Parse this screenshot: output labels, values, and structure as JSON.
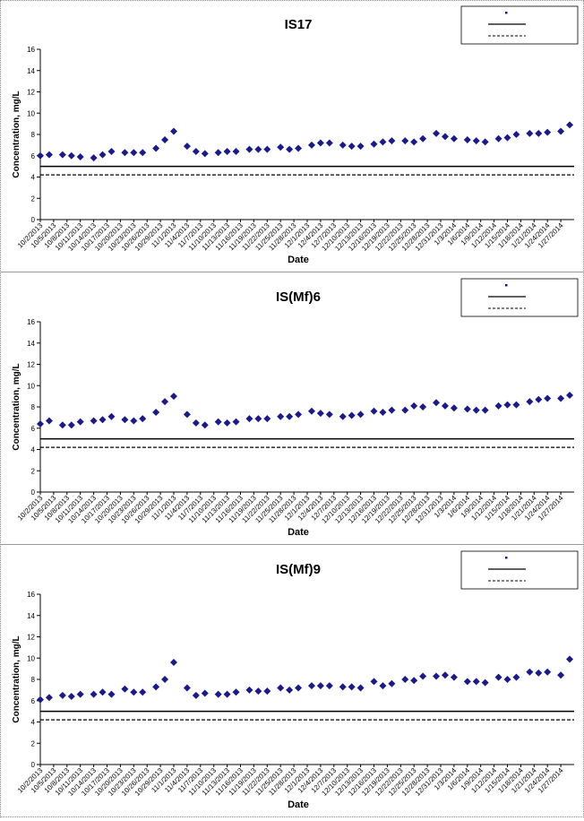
{
  "chart_data": [
    {
      "type": "scatter",
      "title": "IS17",
      "xlabel": "Date",
      "ylabel": "Concentration, mg/L",
      "ylim": [
        0,
        16
      ],
      "yticks": [
        "0",
        "2",
        "4",
        "6",
        "8",
        "10",
        "12",
        "14",
        "16"
      ],
      "date_ticks": [
        "10/2/2013",
        "10/5/2013",
        "10/8/2013",
        "10/11/2013",
        "10/14/2013",
        "10/17/2013",
        "10/20/2013",
        "10/23/2013",
        "10/26/2013",
        "10/29/2013",
        "11/1/2013",
        "11/4/2013",
        "11/7/2013",
        "11/10/2013",
        "11/13/2013",
        "11/16/2013",
        "11/19/2013",
        "11/22/2013",
        "11/25/2013",
        "11/28/2013",
        "12/1/2013",
        "12/4/2013",
        "12/7/2013",
        "12/10/2013",
        "12/13/2013",
        "12/16/2013",
        "12/19/2013",
        "12/22/2013",
        "12/25/2013",
        "12/28/2013",
        "12/31/2013",
        "1/3/2014",
        "1/6/2014",
        "1/9/2014",
        "1/12/2014",
        "1/15/2014",
        "1/18/2014",
        "1/21/2014",
        "1/24/2014",
        "1/27/2014"
      ],
      "date_range": [
        "10/2/2013",
        "1/30/2014"
      ],
      "grid": false,
      "legend": "top-right",
      "legend_entries": [
        "",
        "",
        ""
      ],
      "hlines": [
        5.0,
        4.2
      ],
      "series": [
        {
          "x": [
            "10/2/2013",
            "10/4/2013",
            "10/7/2013",
            "10/9/2013",
            "10/11/2013",
            "10/14/2013",
            "10/16/2013",
            "10/18/2013",
            "10/21/2013",
            "10/23/2013",
            "10/25/2013",
            "10/28/2013",
            "10/30/2013",
            "11/1/2013",
            "11/4/2013",
            "11/6/2013",
            "11/8/2013",
            "11/11/2013",
            "11/13/2013",
            "11/15/2013",
            "11/18/2013",
            "11/20/2013",
            "11/22/2013",
            "11/25/2013",
            "11/27/2013",
            "11/29/2013",
            "12/2/2013",
            "12/4/2013",
            "12/6/2013",
            "12/9/2013",
            "12/11/2013",
            "12/13/2013",
            "12/16/2013",
            "12/18/2013",
            "12/20/2013",
            "12/23/2013",
            "12/25/2013",
            "12/27/2013",
            "12/30/2013",
            "1/1/2014",
            "1/3/2014",
            "1/6/2014",
            "1/8/2014",
            "1/10/2014",
            "1/13/2014",
            "1/15/2014",
            "1/17/2014",
            "1/20/2014",
            "1/22/2014",
            "1/24/2014",
            "1/27/2014",
            "1/29/2014"
          ],
          "y": [
            6.0,
            6.1,
            6.1,
            6.0,
            5.9,
            5.8,
            6.1,
            6.4,
            6.3,
            6.3,
            6.3,
            6.7,
            7.5,
            8.3,
            6.9,
            6.4,
            6.2,
            6.3,
            6.4,
            6.4,
            6.6,
            6.6,
            6.6,
            6.8,
            6.6,
            6.7,
            7.0,
            7.2,
            7.2,
            7.0,
            6.9,
            6.9,
            7.1,
            7.3,
            7.4,
            7.4,
            7.3,
            7.6,
            8.1,
            7.8,
            7.6,
            7.5,
            7.4,
            7.3,
            7.6,
            7.7,
            8.0,
            8.1,
            8.1,
            8.2,
            8.3,
            8.9
          ],
          "color": "#1a1a8c"
        }
      ]
    },
    {
      "type": "scatter",
      "title": "IS(Mf)6",
      "xlabel": "Date",
      "ylabel": "Concentration, mg/L",
      "ylim": [
        0,
        16
      ],
      "yticks": [
        "0",
        "2",
        "4",
        "6",
        "8",
        "10",
        "12",
        "14",
        "16"
      ],
      "date_ticks": [
        "10/2/2013",
        "10/5/2013",
        "10/8/2013",
        "10/11/2013",
        "10/14/2013",
        "10/17/2013",
        "10/20/2013",
        "10/23/2013",
        "10/26/2013",
        "10/29/2013",
        "11/1/2013",
        "11/4/2013",
        "11/7/2013",
        "11/10/2013",
        "11/13/2013",
        "11/16/2013",
        "11/19/2013",
        "11/22/2013",
        "11/25/2013",
        "11/28/2013",
        "12/1/2013",
        "12/4/2013",
        "12/7/2013",
        "12/10/2013",
        "12/13/2013",
        "12/16/2013",
        "12/19/2013",
        "12/22/2013",
        "12/25/2013",
        "12/28/2013",
        "12/31/2013",
        "1/3/2014",
        "1/6/2014",
        "1/9/2014",
        "1/12/2014",
        "1/15/2014",
        "1/18/2014",
        "1/21/2014",
        "1/24/2014",
        "1/27/2014"
      ],
      "date_range": [
        "10/2/2013",
        "1/30/2014"
      ],
      "grid": false,
      "legend": "top-right",
      "legend_entries": [
        "",
        "",
        ""
      ],
      "hlines": [
        5.0,
        4.2
      ],
      "series": [
        {
          "x": [
            "10/2/2013",
            "10/4/2013",
            "10/7/2013",
            "10/9/2013",
            "10/11/2013",
            "10/14/2013",
            "10/16/2013",
            "10/18/2013",
            "10/21/2013",
            "10/23/2013",
            "10/25/2013",
            "10/28/2013",
            "10/30/2013",
            "11/1/2013",
            "11/4/2013",
            "11/6/2013",
            "11/8/2013",
            "11/11/2013",
            "11/13/2013",
            "11/15/2013",
            "11/18/2013",
            "11/20/2013",
            "11/22/2013",
            "11/25/2013",
            "11/27/2013",
            "11/29/2013",
            "12/2/2013",
            "12/4/2013",
            "12/6/2013",
            "12/9/2013",
            "12/11/2013",
            "12/13/2013",
            "12/16/2013",
            "12/18/2013",
            "12/20/2013",
            "12/23/2013",
            "12/25/2013",
            "12/27/2013",
            "12/30/2013",
            "1/1/2014",
            "1/3/2014",
            "1/6/2014",
            "1/8/2014",
            "1/10/2014",
            "1/13/2014",
            "1/15/2014",
            "1/17/2014",
            "1/20/2014",
            "1/22/2014",
            "1/24/2014",
            "1/27/2014",
            "1/29/2014"
          ],
          "y": [
            6.4,
            6.7,
            6.3,
            6.3,
            6.6,
            6.7,
            6.8,
            7.1,
            6.8,
            6.7,
            6.9,
            7.5,
            8.5,
            9.0,
            7.3,
            6.5,
            6.3,
            6.6,
            6.5,
            6.6,
            6.9,
            6.9,
            6.9,
            7.1,
            7.1,
            7.3,
            7.6,
            7.4,
            7.3,
            7.1,
            7.2,
            7.3,
            7.6,
            7.5,
            7.7,
            7.7,
            8.1,
            8.0,
            8.4,
            8.1,
            7.9,
            7.8,
            7.7,
            7.7,
            8.1,
            8.2,
            8.2,
            8.5,
            8.7,
            8.8,
            8.8,
            9.1
          ],
          "color": "#1a1a8c"
        }
      ]
    },
    {
      "type": "scatter",
      "title": "IS(Mf)9",
      "xlabel": "Date",
      "ylabel": "Concentration, mg/L",
      "ylim": [
        0,
        16
      ],
      "yticks": [
        "0",
        "2",
        "4",
        "6",
        "8",
        "10",
        "12",
        "14",
        "16"
      ],
      "date_ticks": [
        "10/2/2013",
        "10/5/2013",
        "10/8/2013",
        "10/11/2013",
        "10/14/2013",
        "10/17/2013",
        "10/20/2013",
        "10/23/2013",
        "10/26/2013",
        "10/29/2013",
        "11/1/2013",
        "11/4/2013",
        "11/7/2013",
        "11/10/2013",
        "11/13/2013",
        "11/16/2013",
        "11/19/2013",
        "11/22/2013",
        "11/25/2013",
        "11/28/2013",
        "12/1/2013",
        "12/4/2013",
        "12/7/2013",
        "12/10/2013",
        "12/13/2013",
        "12/16/2013",
        "12/19/2013",
        "12/22/2013",
        "12/25/2013",
        "12/28/2013",
        "12/31/2013",
        "1/3/2014",
        "1/6/2014",
        "1/9/2014",
        "1/12/2014",
        "1/15/2014",
        "1/18/2014",
        "1/21/2014",
        "1/24/2014",
        "1/27/2014"
      ],
      "date_range": [
        "10/2/2013",
        "1/30/2014"
      ],
      "grid": false,
      "legend": "top-right",
      "legend_entries": [
        "",
        "",
        ""
      ],
      "hlines": [
        5.0,
        4.2
      ],
      "series": [
        {
          "x": [
            "10/2/2013",
            "10/4/2013",
            "10/7/2013",
            "10/9/2013",
            "10/11/2013",
            "10/14/2013",
            "10/16/2013",
            "10/18/2013",
            "10/21/2013",
            "10/23/2013",
            "10/25/2013",
            "10/28/2013",
            "10/30/2013",
            "11/1/2013",
            "11/4/2013",
            "11/6/2013",
            "11/8/2013",
            "11/11/2013",
            "11/13/2013",
            "11/15/2013",
            "11/18/2013",
            "11/20/2013",
            "11/22/2013",
            "11/25/2013",
            "11/27/2013",
            "11/29/2013",
            "12/2/2013",
            "12/4/2013",
            "12/6/2013",
            "12/9/2013",
            "12/11/2013",
            "12/13/2013",
            "12/16/2013",
            "12/18/2013",
            "12/20/2013",
            "12/23/2013",
            "12/25/2013",
            "12/27/2013",
            "12/30/2013",
            "1/1/2014",
            "1/3/2014",
            "1/6/2014",
            "1/8/2014",
            "1/10/2014",
            "1/13/2014",
            "1/15/2014",
            "1/17/2014",
            "1/20/2014",
            "1/22/2014",
            "1/24/2014",
            "1/27/2014",
            "1/29/2014"
          ],
          "y": [
            6.1,
            6.3,
            6.5,
            6.4,
            6.6,
            6.6,
            6.8,
            6.6,
            7.1,
            6.8,
            6.8,
            7.3,
            8.0,
            9.6,
            7.2,
            6.5,
            6.7,
            6.6,
            6.6,
            6.8,
            7.0,
            6.9,
            6.9,
            7.2,
            7.0,
            7.2,
            7.4,
            7.4,
            7.4,
            7.3,
            7.3,
            7.2,
            7.8,
            7.4,
            7.6,
            8.0,
            7.9,
            8.3,
            8.3,
            8.4,
            8.2,
            7.8,
            7.8,
            7.7,
            8.2,
            8.0,
            8.2,
            8.7,
            8.6,
            8.7,
            8.4,
            9.9
          ],
          "color": "#1a1a8c"
        }
      ]
    }
  ]
}
